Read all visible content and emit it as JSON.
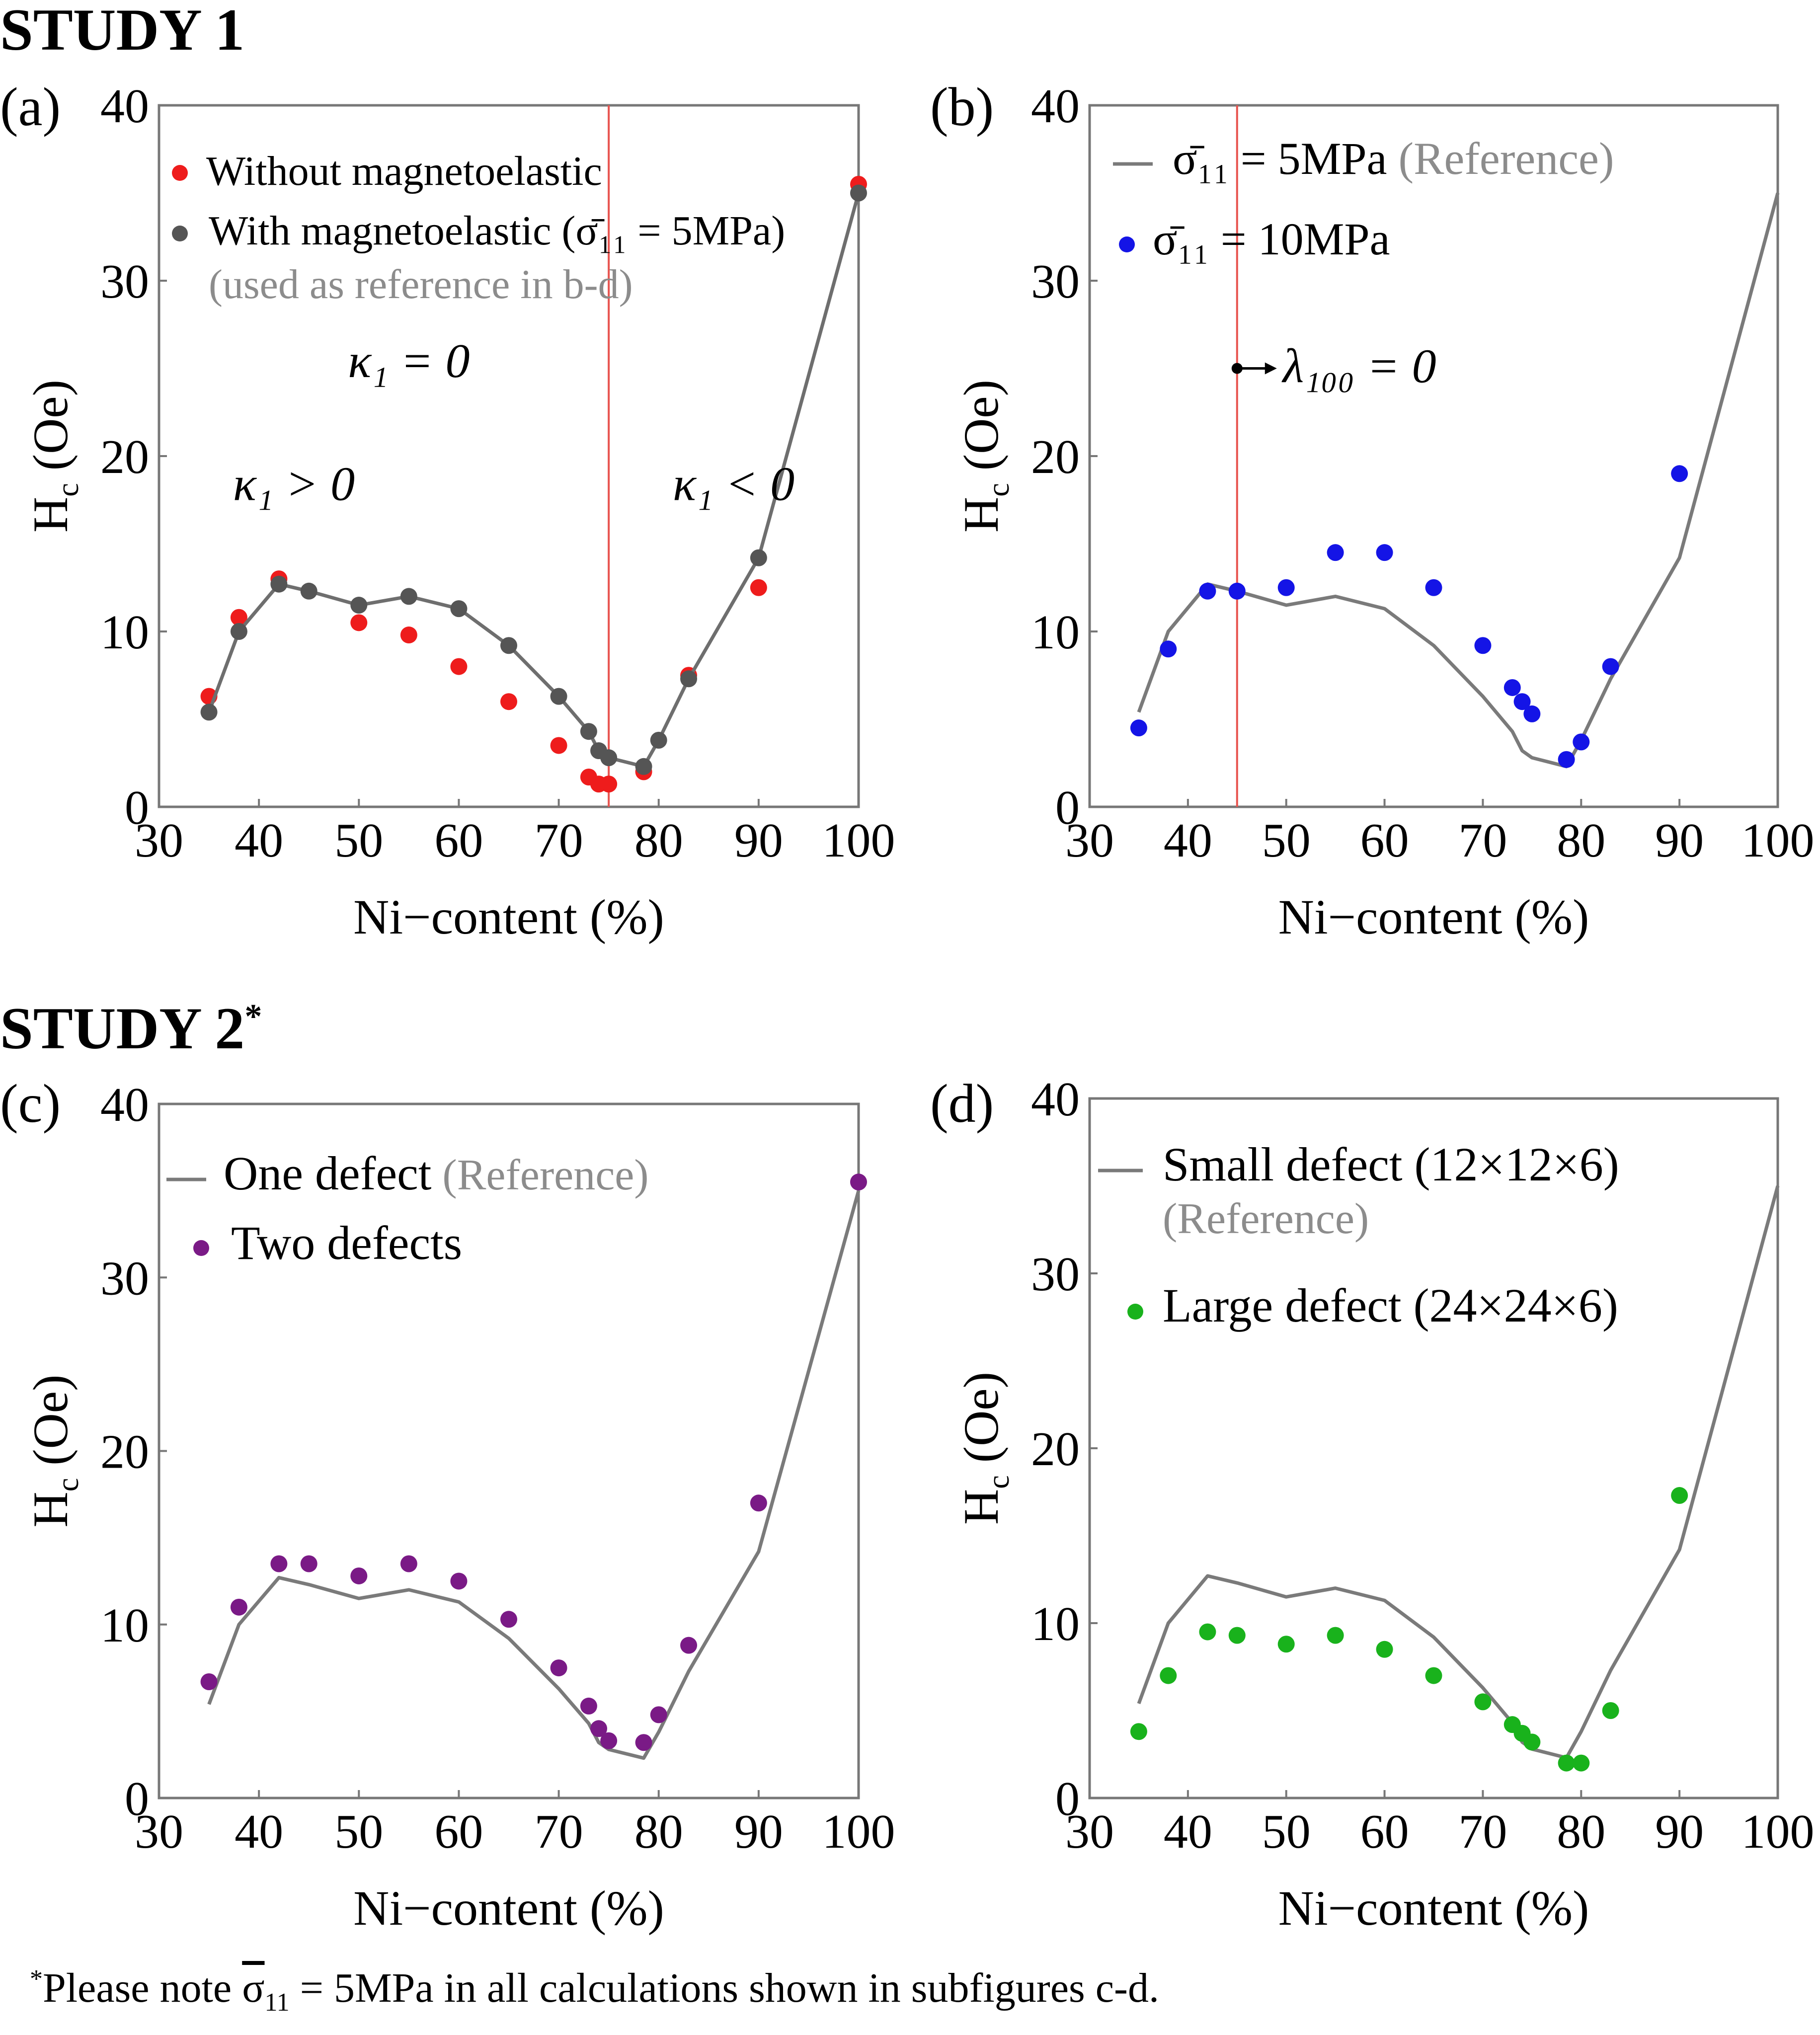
{
  "headings": {
    "study1": "STUDY 1",
    "study2": "STUDY 2",
    "study2_mark": "*"
  },
  "footnote": {
    "mark": "*",
    "prefix": "Please note ",
    "sigma": "σ",
    "sub": "11",
    "suffix": " = 5MPa in all calculations shown in subfigures c-d."
  },
  "colors": {
    "red": "#ee1c1c",
    "gray": "#6b6b6b",
    "line": "#7a7a7a",
    "blue": "#1414e6",
    "purple": "#7a1a86",
    "green": "#19b21c",
    "guide": "#e8544f",
    "reference_text": "#8c8c8c"
  },
  "chart_data": [
    {
      "id": "a",
      "panel_label": "(a)",
      "type": "scatter",
      "xlabel": "Ni−content (%)",
      "ylabel_main": "H",
      "ylabel_sub": "c",
      "ylabel_unit": " (Oe)",
      "xlim": [
        30,
        100
      ],
      "ylim": [
        0,
        40
      ],
      "xticks": [
        30,
        40,
        50,
        60,
        70,
        80,
        90,
        100
      ],
      "yticks": [
        0,
        10,
        20,
        30,
        40
      ],
      "vline_x": 75,
      "series": [
        {
          "name": "Without magnetoelastic",
          "kind": "points",
          "color": "#ee1c1c",
          "x": [
            35,
            38,
            42,
            50,
            55,
            60,
            65,
            70,
            73,
            74,
            75,
            78.5,
            83,
            90,
            100
          ],
          "y": [
            6.3,
            10.8,
            13,
            10.5,
            9.8,
            8,
            6,
            3.5,
            1.7,
            1.3,
            1.3,
            2,
            7.5,
            12.5,
            35.5
          ]
        },
        {
          "name": "With magnetoelastic (σ̄11 = 5MPa)",
          "kind": "line+points",
          "color": "#555555",
          "x": [
            35,
            38,
            42,
            45,
            50,
            55,
            60,
            65,
            70,
            73,
            74,
            75,
            78.5,
            80,
            83,
            90,
            100
          ],
          "y": [
            5.4,
            10,
            12.7,
            12.3,
            11.5,
            12,
            11.3,
            9.2,
            6.3,
            4.3,
            3.2,
            2.8,
            2.3,
            3.8,
            7.3,
            14.2,
            35
          ]
        }
      ],
      "legend": [
        {
          "text": "Without magnetoelastic",
          "color": "#ee1c1c"
        },
        {
          "text": "With magnetoelastic (σ̄₁₁ = 5MPa)",
          "color": "#555555"
        },
        {
          "text": "(used as reference in b-d)",
          "color": "#8c8c8c"
        }
      ],
      "annotations": [
        {
          "text": "κ₁ = 0",
          "x": 55,
          "y": 24.5
        },
        {
          "text": "κ₁ > 0",
          "x": 43.5,
          "y": 17.5
        },
        {
          "text": "κ₁ < 0",
          "x": 87.5,
          "y": 17.5
        }
      ]
    },
    {
      "id": "b",
      "panel_label": "(b)",
      "type": "scatter",
      "xlabel": "Ni−content (%)",
      "ylabel_main": "H",
      "ylabel_sub": "c",
      "ylabel_unit": " (Oe)",
      "xlim": [
        30,
        100
      ],
      "ylim": [
        0,
        40
      ],
      "xticks": [
        30,
        40,
        50,
        60,
        70,
        80,
        90,
        100
      ],
      "yticks": [
        0,
        10,
        20,
        30,
        40
      ],
      "vline_x": 45,
      "series": [
        {
          "name": "σ̄11 = 5MPa (Reference)",
          "kind": "line",
          "color": "#7a7a7a",
          "x": [
            35,
            38,
            42,
            45,
            50,
            55,
            60,
            65,
            70,
            73,
            74,
            75,
            78.5,
            80,
            83,
            90,
            100
          ],
          "y": [
            5.4,
            10,
            12.7,
            12.3,
            11.5,
            12,
            11.3,
            9.2,
            6.3,
            4.3,
            3.2,
            2.8,
            2.3,
            3.8,
            7.3,
            14.2,
            35
          ]
        },
        {
          "name": "σ̄11 = 10MPa",
          "kind": "points",
          "color": "#1414e6",
          "x": [
            35,
            38,
            42,
            45,
            50,
            55,
            60,
            65,
            70,
            73,
            74,
            75,
            78.5,
            80,
            83,
            90
          ],
          "y": [
            4.5,
            9,
            12.3,
            12.3,
            12.5,
            14.5,
            14.5,
            12.5,
            9.2,
            6.8,
            6,
            5.3,
            2.7,
            3.7,
            8,
            19
          ]
        }
      ],
      "legend": [
        {
          "text": "σ̄₁₁ = 5MPa",
          "extra": " (Reference)",
          "color": "#7a7a7a",
          "kind": "line"
        },
        {
          "text": "σ̄₁₁ = 10MPa",
          "color": "#1414e6",
          "kind": "point"
        }
      ],
      "annotations": [
        {
          "text": "λ₁₀₀ = 0",
          "x": 53.5,
          "y": 25
        }
      ]
    },
    {
      "id": "c",
      "panel_label": "(c)",
      "type": "scatter",
      "xlabel": "Ni−content (%)",
      "ylabel_main": "H",
      "ylabel_sub": "c",
      "ylabel_unit": " (Oe)",
      "xlim": [
        30,
        100
      ],
      "ylim": [
        0,
        40
      ],
      "xticks": [
        30,
        40,
        50,
        60,
        70,
        80,
        90,
        100
      ],
      "yticks": [
        0,
        10,
        20,
        30,
        40
      ],
      "series": [
        {
          "name": "One defect (Reference)",
          "kind": "line",
          "color": "#7a7a7a",
          "x": [
            35,
            38,
            42,
            45,
            50,
            55,
            60,
            65,
            70,
            73,
            74,
            75,
            78.5,
            80,
            83,
            90,
            100
          ],
          "y": [
            5.4,
            10,
            12.7,
            12.3,
            11.5,
            12,
            11.3,
            9.2,
            6.3,
            4.3,
            3.2,
            2.8,
            2.3,
            3.8,
            7.3,
            14.2,
            35
          ]
        },
        {
          "name": "Two defects",
          "kind": "points",
          "color": "#7a1a86",
          "x": [
            35,
            38,
            42,
            45,
            50,
            55,
            60,
            65,
            70,
            73,
            74,
            75,
            78.5,
            80,
            83,
            90,
            100
          ],
          "y": [
            6.7,
            11,
            13.5,
            13.5,
            12.8,
            13.5,
            12.5,
            10.3,
            7.5,
            5.3,
            4,
            3.3,
            3.2,
            4.8,
            8.8,
            17,
            35.5
          ]
        }
      ],
      "legend": [
        {
          "text": "One defect",
          "extra": " (Reference)",
          "color": "#7a7a7a",
          "kind": "line"
        },
        {
          "text": "Two defects",
          "color": "#7a1a86",
          "kind": "point"
        }
      ],
      "annotations": []
    },
    {
      "id": "d",
      "panel_label": "(d)",
      "type": "scatter",
      "xlabel": "Ni−content (%)",
      "ylabel_main": "H",
      "ylabel_sub": "c",
      "ylabel_unit": " (Oe)",
      "xlim": [
        30,
        100
      ],
      "ylim": [
        0,
        40
      ],
      "xticks": [
        30,
        40,
        50,
        60,
        70,
        80,
        90,
        100
      ],
      "yticks": [
        0,
        10,
        20,
        30,
        40
      ],
      "series": [
        {
          "name": "Small defect (12×12×6) (Reference)",
          "kind": "line",
          "color": "#7a7a7a",
          "x": [
            35,
            38,
            42,
            45,
            50,
            55,
            60,
            65,
            70,
            73,
            74,
            75,
            78.5,
            80,
            83,
            90,
            100
          ],
          "y": [
            5.4,
            10,
            12.7,
            12.3,
            11.5,
            12,
            11.3,
            9.2,
            6.3,
            4.3,
            3.2,
            2.8,
            2.3,
            3.8,
            7.3,
            14.2,
            35
          ]
        },
        {
          "name": "Large defect (24×24×6)",
          "kind": "points",
          "color": "#19b21c",
          "x": [
            35,
            38,
            42,
            45,
            50,
            55,
            60,
            65,
            70,
            73,
            74,
            75,
            78.5,
            80,
            83,
            90
          ],
          "y": [
            3.8,
            7,
            9.5,
            9.3,
            8.8,
            9.3,
            8.5,
            7,
            5.5,
            4.2,
            3.7,
            3.2,
            2,
            2,
            5,
            17.3
          ]
        }
      ],
      "legend": [
        {
          "text": "Small defect (12×12×6)",
          "color": "#7a7a7a",
          "kind": "line"
        },
        {
          "text": "(Reference)",
          "color": "#8c8c8c",
          "kind": "none"
        },
        {
          "text": "Large defect (24×24×6)",
          "color": "#19b21c",
          "kind": "point"
        }
      ],
      "annotations": []
    }
  ]
}
